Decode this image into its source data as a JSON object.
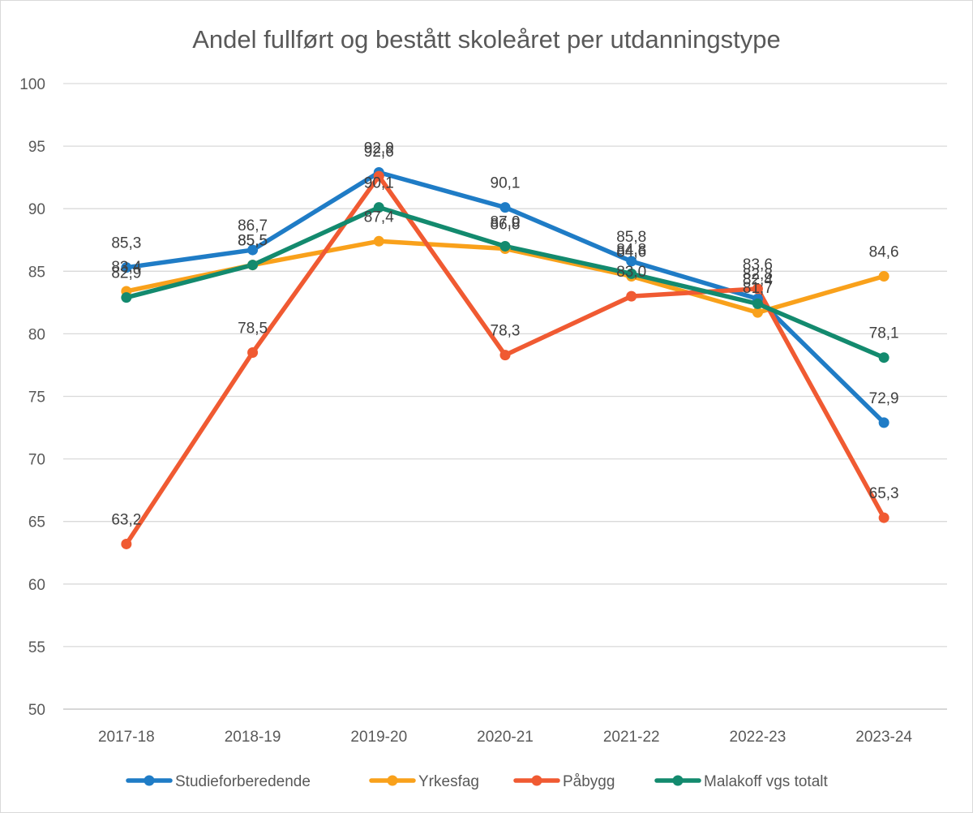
{
  "chart_data": {
    "type": "line",
    "title": "Andel fullført og bestått skoleåret per utdanningstype",
    "xlabel": "",
    "ylabel": "",
    "categories": [
      "2017-18",
      "2018-19",
      "2019-20",
      "2020-21",
      "2021-22",
      "2022-23",
      "2023-24"
    ],
    "ylim": [
      50,
      100
    ],
    "yticks": [
      50,
      55,
      60,
      65,
      70,
      75,
      80,
      85,
      90,
      95,
      100
    ],
    "ytick_labels": [
      "50",
      "55",
      "60",
      "65",
      "70",
      "75",
      "80",
      "85",
      "90",
      "95",
      "100"
    ],
    "grid": true,
    "legend_position": "bottom",
    "data_labels": true,
    "series": [
      {
        "name": "Studieforberedende",
        "color": "#1f7cc6",
        "values": [
          85.3,
          86.7,
          92.9,
          90.1,
          85.8,
          82.8,
          72.9
        ],
        "labels": [
          "85,3",
          "86,7",
          "92,9",
          "90,1",
          "85,8",
          "82,8",
          "72,9"
        ]
      },
      {
        "name": "Yrkesfag",
        "color": "#f9a11b",
        "values": [
          83.4,
          85.5,
          87.4,
          86.8,
          84.6,
          81.7,
          84.6
        ],
        "labels": [
          "83,4",
          "85,5",
          "87,4",
          "86,8",
          "84,6",
          "81,7",
          "84,6"
        ]
      },
      {
        "name": "Påbygg",
        "color": "#f05a32",
        "values": [
          63.2,
          78.5,
          92.6,
          78.3,
          83.0,
          83.6,
          65.3
        ],
        "labels": [
          "63,2",
          "78,5",
          "92,6",
          "78,3",
          "83,0",
          "83,6",
          "65,3"
        ]
      },
      {
        "name": "Malakoff vgs totalt",
        "color": "#138a6e",
        "values": [
          82.9,
          85.5,
          90.1,
          87.0,
          84.8,
          82.4,
          78.1
        ],
        "labels": [
          "82,9",
          "85,5",
          "90,1",
          "87,0",
          "84,8",
          "82,4",
          "78,1"
        ]
      }
    ]
  }
}
